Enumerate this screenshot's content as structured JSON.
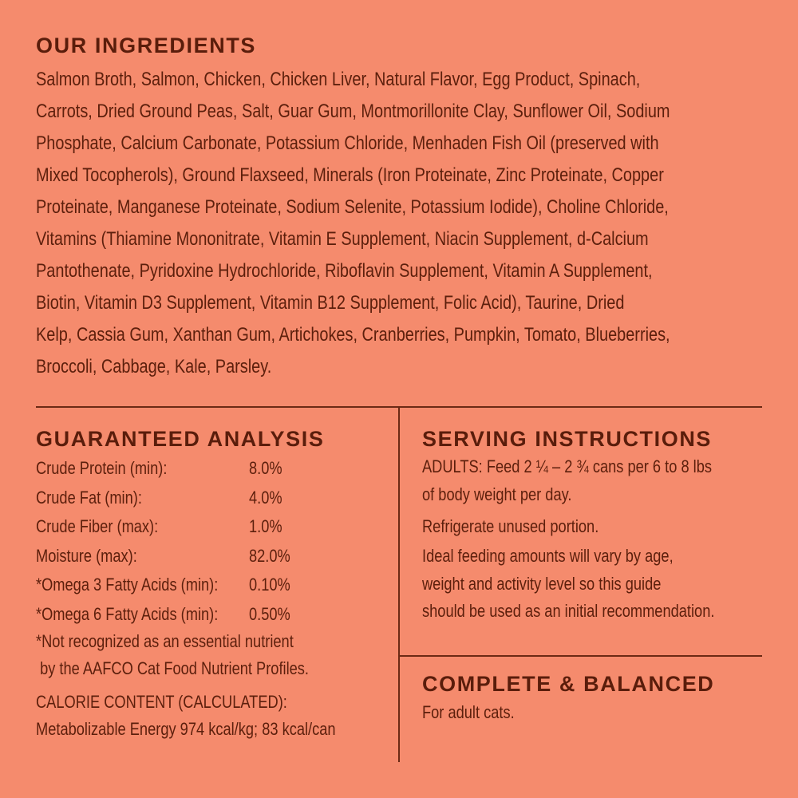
{
  "colors": {
    "background": "#F58B6D",
    "text": "#5C1F0C"
  },
  "ingredients": {
    "title": "OUR INGREDIENTS",
    "lines": [
      "Salmon Broth, Salmon, Chicken, Chicken Liver, Natural Flavor, Egg Product, Spinach,",
      "Carrots, Dried Ground Peas, Salt, Guar Gum, Montmorillonite Clay, Sunflower Oil, Sodium",
      "Phosphate, Calcium Carbonate, Potassium Chloride, Menhaden Fish Oil (preserved with",
      "Mixed Tocopherols), Ground Flaxseed, Minerals (Iron Proteinate, Zinc Proteinate, Copper",
      "Proteinate, Manganese Proteinate, Sodium Selenite, Potassium Iodide), Choline Chloride,",
      "Vitamins (Thiamine Mononitrate, Vitamin E Supplement, Niacin Supplement, d-Calcium",
      "Pantothenate, Pyridoxine Hydrochloride, Riboflavin Supplement, Vitamin A Supplement,",
      "Biotin, Vitamin D3 Supplement, Vitamin B12 Supplement, Folic Acid), Taurine, Dried",
      "Kelp, Cassia Gum, Xanthan Gum, Artichokes, Cranberries, Pumpkin, Tomato, Blueberries,",
      "Broccoli, Cabbage, Kale, Parsley."
    ]
  },
  "analysis": {
    "title": "GUARANTEED ANALYSIS",
    "rows": [
      {
        "label": "Crude Protein (min):",
        "value": "8.0%"
      },
      {
        "label": "Crude Fat (min):",
        "value": "4.0%"
      },
      {
        "label": "Crude Fiber (max):",
        "value": "1.0%"
      },
      {
        "label": "Moisture (max):",
        "value": "82.0%"
      },
      {
        "label": "*Omega 3 Fatty Acids (min):",
        "value": "0.10%"
      },
      {
        "label": "*Omega 6 Fatty Acids (min):",
        "value": "0.50%"
      }
    ],
    "footnote": [
      "*Not recognized as an essential nutrient",
      " by the AAFCO Cat Food Nutrient Profiles."
    ],
    "calorie": [
      "CALORIE CONTENT (CALCULATED):",
      "Metabolizable Energy 974 kcal/kg; 83 kcal/can"
    ]
  },
  "serving": {
    "title": "SERVING INSTRUCTIONS",
    "lines": [
      "ADULTS: Feed 2 ¼ – 2 ¾ cans per 6 to 8 lbs",
      "of body weight per day.",
      "Refrigerate unused portion.",
      "Ideal feeding amounts will vary by age,",
      "weight and activity level so this guide",
      "should be used as an initial recommendation."
    ]
  },
  "complete": {
    "title": "COMPLETE & BALANCED",
    "text": "For adult cats."
  }
}
